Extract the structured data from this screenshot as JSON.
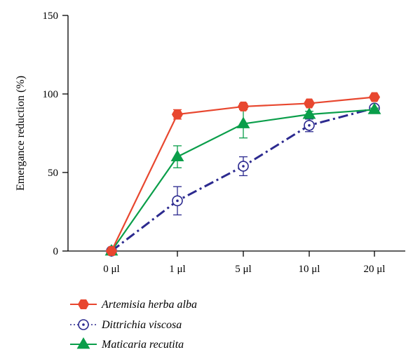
{
  "chart_data": {
    "type": "line",
    "categories": [
      "0 μl",
      "1 μl",
      "5 μl",
      "10 μl",
      "20 μl"
    ],
    "ylabel": "Emergance reduction (%)",
    "xlabel": "",
    "ylim": [
      0,
      150
    ],
    "yticks": [
      "0",
      "50",
      "100",
      "150"
    ],
    "grid": false,
    "legend_position": "bottom-left",
    "series": [
      {
        "name": "Artemisia herba alba",
        "color": "#e8472f",
        "marker": "hexagon",
        "line_style": "solid",
        "values": [
          0,
          87,
          92,
          94,
          98
        ],
        "errors": [
          0,
          3,
          2,
          1,
          1
        ]
      },
      {
        "name": "Dittrichia viscosa",
        "color": "#2c2a8f",
        "marker": "circle-dot",
        "line_style": "dash-dot",
        "values": [
          0,
          32,
          54,
          80,
          91
        ],
        "errors": [
          0,
          9,
          6,
          4,
          2
        ]
      },
      {
        "name": "Maticaria recutita",
        "color": "#0a9e4a",
        "marker": "triangle",
        "line_style": "solid",
        "values": [
          0,
          60,
          81,
          87,
          90
        ],
        "errors": [
          0,
          7,
          9,
          2,
          1
        ]
      }
    ]
  }
}
